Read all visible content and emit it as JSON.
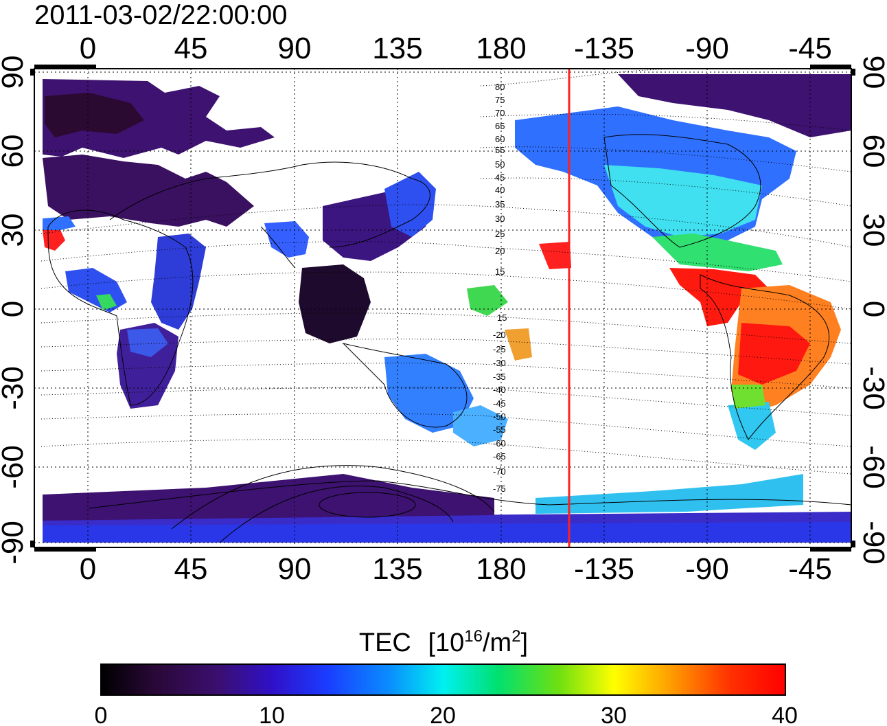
{
  "timestamp": "2011-03-02/22:00:00",
  "lon_ticks": [
    "0",
    "45",
    "90",
    "135",
    "180",
    "-135",
    "-90",
    "-45"
  ],
  "lat_ticks": [
    "90",
    "60",
    "30",
    "0",
    "-30",
    "-60",
    "-90"
  ],
  "contour_labels": [
    "80",
    "75",
    "70",
    "65",
    "60",
    "55",
    "50",
    "45",
    "40",
    "35",
    "30",
    "25",
    "20",
    "15",
    "15",
    "-20",
    "-25",
    "-30",
    "-35",
    "-40",
    "-45",
    "-50",
    "-55",
    "-60",
    "-65",
    "-70",
    "-75"
  ],
  "colorbar": {
    "title": "TEC",
    "unit_base": "[10",
    "unit_exp": "16",
    "unit_mid": "/m",
    "unit_exp2": "2",
    "unit_end": "]",
    "ticks": [
      "0",
      "10",
      "20",
      "30",
      "40"
    ],
    "min": 0,
    "max": 40
  },
  "terminator_longitude": -150,
  "colors": {
    "terminator": "#ff2020",
    "dark_fill": "#2a0a40",
    "purple_fill": "#3d1270",
    "blue_fill": "#2f4bff"
  }
}
